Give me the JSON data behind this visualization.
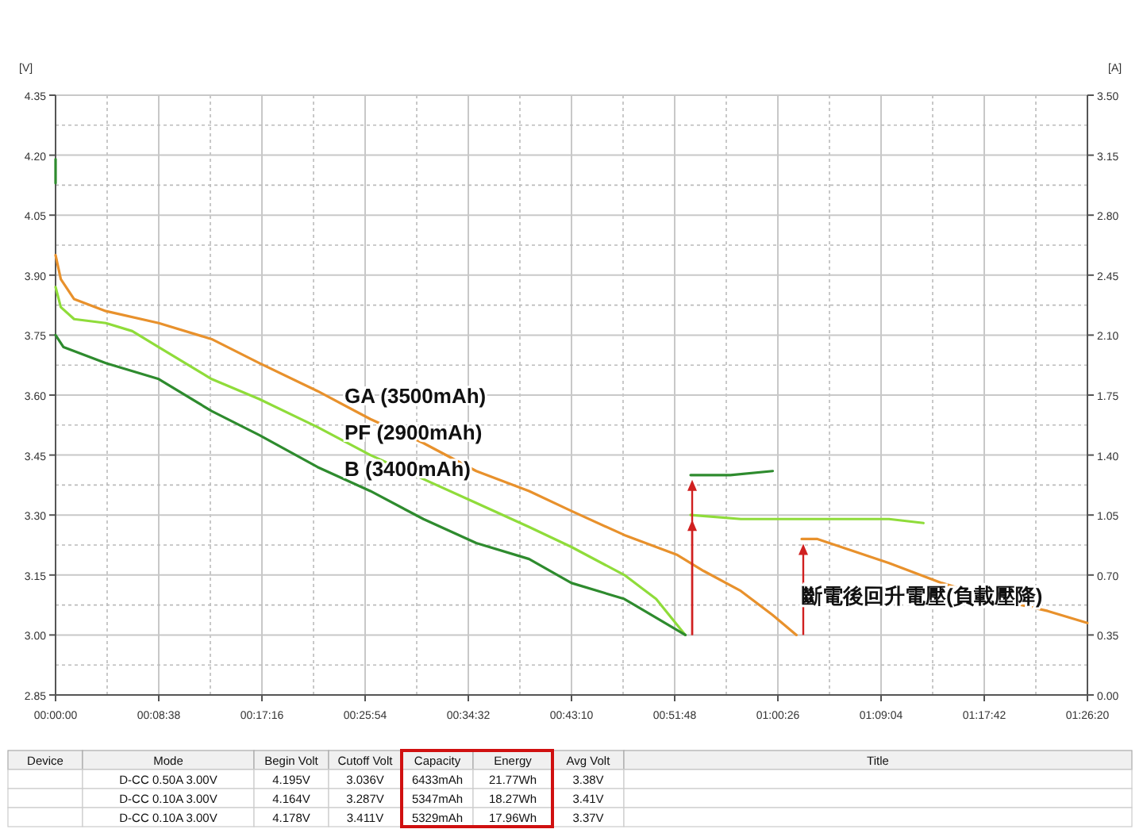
{
  "chart_data": {
    "type": "line",
    "ylabel": "[V]",
    "y2label": "[A]",
    "grid": true,
    "line_style": "solid",
    "xlim": [
      0,
      1.43889
    ],
    "xticks": [
      {
        "value": 0,
        "label": "00:00:00"
      },
      {
        "value": 0.14389,
        "label": "00:08:38"
      },
      {
        "value": 0.28778,
        "label": "00:17:16"
      },
      {
        "value": 0.43167,
        "label": "00:25:54"
      },
      {
        "value": 0.57556,
        "label": "00:34:32"
      },
      {
        "value": 0.71944,
        "label": "00:43:10"
      },
      {
        "value": 0.86333,
        "label": "00:51:48"
      },
      {
        "value": 1.00722,
        "label": "01:00:26"
      },
      {
        "value": 1.15111,
        "label": "01:09:04"
      },
      {
        "value": 1.295,
        "label": "01:17:42"
      },
      {
        "value": 1.43889,
        "label": "01:26:20"
      }
    ],
    "ylim": [
      2.85,
      4.35
    ],
    "yticks": [
      {
        "value": 2.85,
        "label": "2.85"
      },
      {
        "value": 3.0,
        "label": "3.00"
      },
      {
        "value": 3.15,
        "label": "3.15"
      },
      {
        "value": 3.3,
        "label": "3.30"
      },
      {
        "value": 3.45,
        "label": "3.45"
      },
      {
        "value": 3.6,
        "label": "3.60"
      },
      {
        "value": 3.75,
        "label": "3.75"
      },
      {
        "value": 3.9,
        "label": "3.90"
      },
      {
        "value": 4.05,
        "label": "4.05"
      },
      {
        "value": 4.2,
        "label": "4.20"
      },
      {
        "value": 4.35,
        "label": "4.35"
      }
    ],
    "y2lim": [
      0,
      3.5
    ],
    "y2ticks": [
      {
        "value": 0,
        "label": "0.00"
      },
      {
        "value": 0.35,
        "label": "0.35"
      },
      {
        "value": 0.7,
        "label": "0.70"
      },
      {
        "value": 1.05,
        "label": "1.05"
      },
      {
        "value": 1.4,
        "label": "1.40"
      },
      {
        "value": 1.75,
        "label": "1.75"
      },
      {
        "value": 2.1,
        "label": "2.10"
      },
      {
        "value": 2.45,
        "label": "2.45"
      },
      {
        "value": 2.8,
        "label": "2.80"
      },
      {
        "value": 3.15,
        "label": "3.15"
      },
      {
        "value": 3.5,
        "label": "3.50"
      }
    ],
    "series": [
      {
        "name": "GA (3500mAh)",
        "color": "#e8912c",
        "x": [
          0,
          0.0073,
          0.0259,
          0.0702,
          0.1439,
          0.2176,
          0.284,
          0.3653,
          0.439,
          0.5129,
          0.5866,
          0.6603,
          0.7194,
          0.7932,
          0.8671,
          0.9038,
          0.9556,
          0.9999,
          1.0331,
          null,
          1.0404,
          1.0625,
          1.1622,
          1.2359,
          1.3098,
          1.3835,
          1.4388
        ],
        "values": [
          3.95,
          3.89,
          3.84,
          3.81,
          3.78,
          3.74,
          3.68,
          3.61,
          3.54,
          3.48,
          3.41,
          3.36,
          3.31,
          3.25,
          3.2,
          3.16,
          3.11,
          3.05,
          3.0,
          null,
          3.24,
          3.24,
          3.18,
          3.13,
          3.09,
          3.06,
          3.03
        ]
      },
      {
        "name": "PF (2900mAh)",
        "color": "#8fdc3a",
        "x": [
          0,
          0.0073,
          0.0259,
          0.0702,
          0.107,
          0.1439,
          0.2176,
          0.284,
          0.3653,
          0.439,
          0.5129,
          0.5866,
          0.6603,
          0.7194,
          0.7932,
          0.8375,
          0.8782,
          null,
          0.8855,
          0.9556,
          1.0515,
          1.1622,
          1.2102
        ],
        "values": [
          3.87,
          3.82,
          3.79,
          3.78,
          3.76,
          3.72,
          3.64,
          3.59,
          3.52,
          3.45,
          3.39,
          3.33,
          3.27,
          3.22,
          3.15,
          3.09,
          3.0,
          null,
          3.3,
          3.29,
          3.29,
          3.29,
          3.28
        ]
      },
      {
        "name": "B  (3400mAh)",
        "color": "#2e8b2e",
        "x": [
          0,
          0,
          null,
          0,
          0.0111,
          0.0702,
          0.1439,
          0.2176,
          0.284,
          0.3653,
          0.439,
          0.5129,
          0.5866,
          0.6603,
          0.7194,
          0.7932,
          0.8782,
          null,
          0.8855,
          0.9409,
          1.0
        ],
        "values": [
          4.19,
          4.13,
          null,
          3.75,
          3.72,
          3.68,
          3.64,
          3.56,
          3.5,
          3.42,
          3.36,
          3.29,
          3.23,
          3.19,
          3.13,
          3.09,
          3.0,
          null,
          3.4,
          3.4,
          3.41
        ]
      }
    ],
    "annotations": [
      "斷電後回升電壓(負載壓降)",
      "Device",
      "Mode",
      "Begin Volt",
      "Cutoff Volt",
      "Capacity",
      "Energy",
      "Avg Volt",
      "Title",
      "D-CC 0.50A 3.00V",
      "4.195V",
      "3.036V",
      "6433mAh",
      "21.77Wh",
      "3.38V",
      "D-CC 0.10A 3.00V",
      "4.164V",
      "3.287V",
      "5347mAh",
      "18.27Wh",
      "3.41V",
      "D-CC 0.10A 3.00V",
      "4.178V",
      "3.411V",
      "5329mAh",
      "17.96Wh",
      "3.37V"
    ]
  }
}
